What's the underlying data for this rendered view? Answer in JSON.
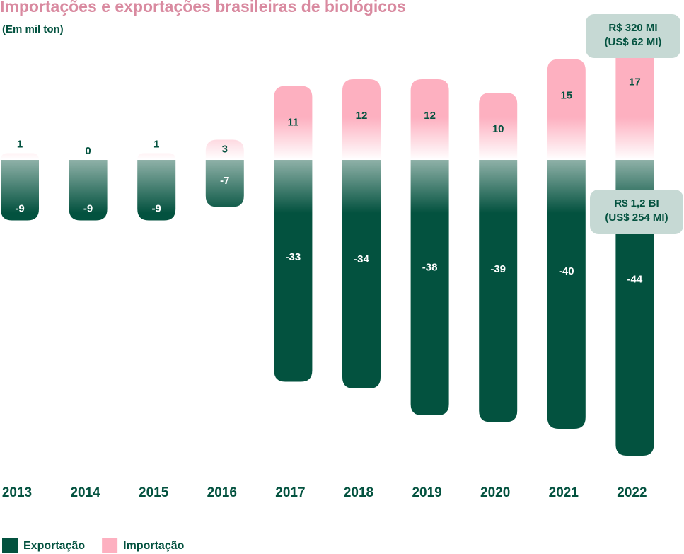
{
  "chart_data": {
    "type": "diverging-bar",
    "title": "Importações e exportações brasileiras de biológicos",
    "subtitle": "(Em mil ton)",
    "categories": [
      "2013",
      "2014",
      "2015",
      "2016",
      "2017",
      "2018",
      "2019",
      "2020",
      "2021",
      "2022"
    ],
    "series": [
      {
        "name": "Exportação",
        "color": "#03523f",
        "values": [
          -9,
          -9,
          -9,
          -7,
          -33,
          -34,
          -38,
          -39,
          -40,
          -44
        ]
      },
      {
        "name": "Importação",
        "color": "#fdb0c0",
        "values": [
          1,
          0,
          1,
          3,
          11,
          12,
          12,
          10,
          15,
          17
        ]
      }
    ],
    "annotations": [
      {
        "lines": [
          "R$ 320 MI",
          "(US$ 62 MI)"
        ]
      },
      {
        "lines": [
          "R$ 1,2 BI",
          "(US$ 254 MI)"
        ]
      }
    ]
  }
}
